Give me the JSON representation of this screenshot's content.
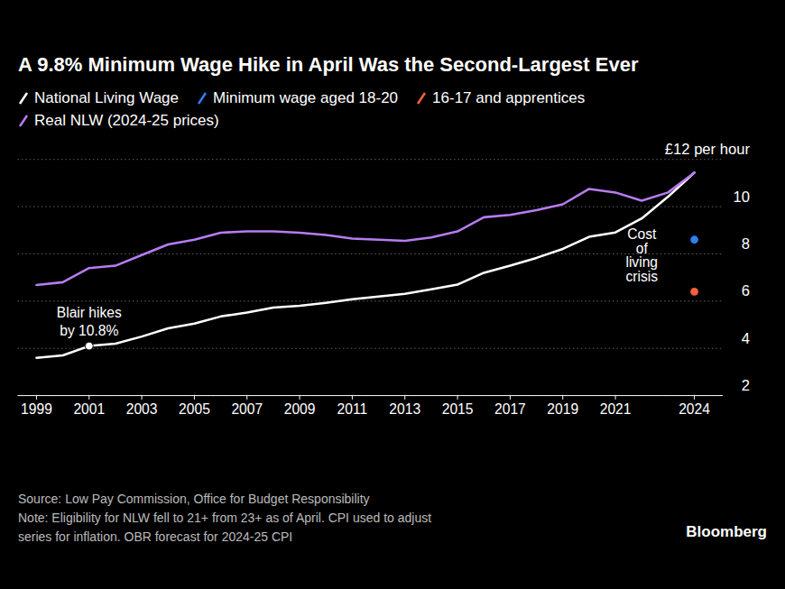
{
  "chart_data": {
    "type": "line",
    "title": "A 9.8% Minimum Wage Hike in April Was the Second-Largest Ever",
    "x": [
      1999,
      2000,
      2001,
      2002,
      2003,
      2004,
      2005,
      2006,
      2007,
      2008,
      2009,
      2010,
      2011,
      2012,
      2013,
      2014,
      2015,
      2016,
      2017,
      2018,
      2019,
      2020,
      2021,
      2022,
      2023,
      2024
    ],
    "series": [
      {
        "name": "National Living Wage",
        "color": "#ffffff",
        "type": "line",
        "values": [
          3.6,
          3.7,
          4.1,
          4.2,
          4.5,
          4.85,
          5.05,
          5.35,
          5.52,
          5.73,
          5.8,
          5.93,
          6.08,
          6.19,
          6.31,
          6.5,
          6.7,
          7.2,
          7.5,
          7.83,
          8.21,
          8.72,
          8.91,
          9.5,
          10.42,
          11.44
        ]
      },
      {
        "name": "Minimum wage aged 18-20",
        "color": "#2f7ff5",
        "type": "scatter",
        "values": [
          null,
          null,
          null,
          null,
          null,
          null,
          null,
          null,
          null,
          null,
          null,
          null,
          null,
          null,
          null,
          null,
          null,
          null,
          null,
          null,
          null,
          null,
          null,
          null,
          null,
          8.6
        ]
      },
      {
        "name": "16-17 and apprentices",
        "color": "#f4623a",
        "type": "scatter",
        "values": [
          null,
          null,
          null,
          null,
          null,
          null,
          null,
          null,
          null,
          null,
          null,
          null,
          null,
          null,
          null,
          null,
          null,
          null,
          null,
          null,
          null,
          null,
          null,
          null,
          null,
          6.4
        ]
      },
      {
        "name": "Real NLW (2024-25 prices)",
        "color": "#b77cf2",
        "type": "line",
        "values": [
          6.68,
          6.8,
          7.4,
          7.5,
          7.95,
          8.4,
          8.6,
          8.9,
          8.95,
          8.95,
          8.9,
          8.8,
          8.65,
          8.6,
          8.55,
          8.7,
          8.95,
          9.55,
          9.65,
          9.85,
          10.1,
          10.75,
          10.6,
          10.25,
          10.6,
          11.44
        ]
      }
    ],
    "xlim": [
      1998.3,
      2025.1
    ],
    "xticks": [
      1999,
      2001,
      2003,
      2005,
      2007,
      2009,
      2011,
      2013,
      2015,
      2017,
      2019,
      2021,
      2024
    ],
    "ylim": [
      2,
      12
    ],
    "yticks": [
      2,
      4,
      6,
      8,
      10,
      {
        "value": 12,
        "label": "£12 per hour"
      }
    ],
    "grid": true,
    "annotations": [
      {
        "text": "Blair hikes\nby 10.8%",
        "x": 2001,
        "marker": "circle"
      },
      {
        "text": "Cost\nof\nliving\ncrisis",
        "x": 2022
      }
    ],
    "source": "Source: Low Pay Commission, Office for Budget Responsibility",
    "note": "Note: Eligibility for NLW fell to 21+ from 23+ as of April. CPI used to adjust\nseries for inflation. OBR forecast for 2024-25 CPI",
    "credit": "Bloomberg"
  }
}
